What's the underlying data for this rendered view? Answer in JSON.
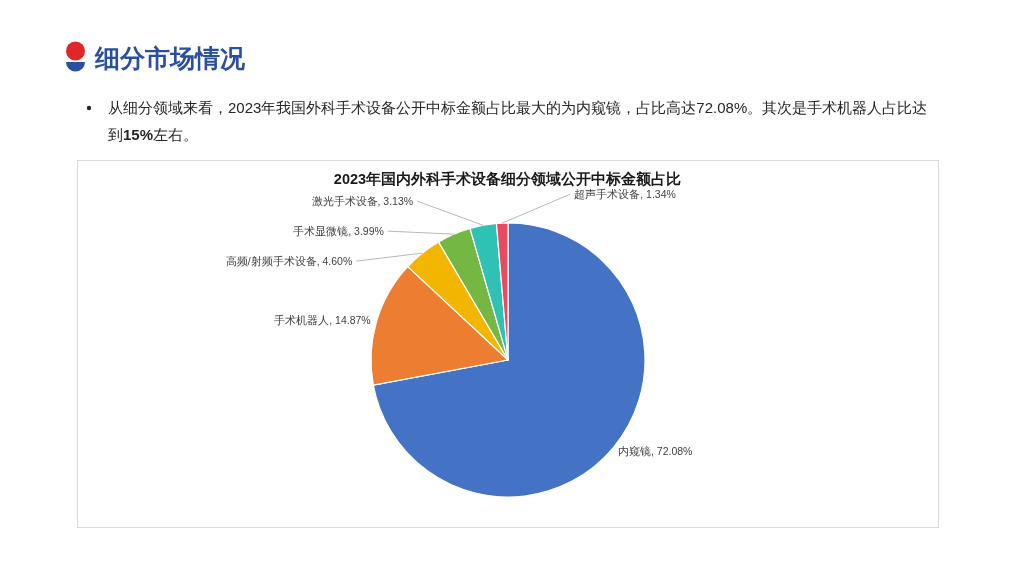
{
  "chart_data": {
    "type": "pie",
    "title": "2023年国内外科手术设备细分领域公开中标金额占比",
    "categories": [
      "内窥镜",
      "手术机器人",
      "高频/射频手术设备",
      "手术显微镜",
      "激光手术设备",
      "超声手术设备"
    ],
    "values": [
      72.08,
      14.87,
      4.6,
      3.99,
      3.13,
      1.34
    ],
    "colors": [
      "#4472c4",
      "#ed7d31",
      "#f2b600",
      "#74b843",
      "#2fc1b3",
      "#e84a5f"
    ],
    "value_labels": [
      "72.08%",
      "14.87%",
      "4.60%",
      "3.99%",
      "3.13%",
      "1.34%"
    ],
    "annotations": [
      "细分市场情况",
      "从细分领域来看，2023年我国外科手术设备公开中标金额占比最大的为内窥镜，占比高达72.08%。其次是手术机器人占比达到**15%**左右。"
    ]
  }
}
